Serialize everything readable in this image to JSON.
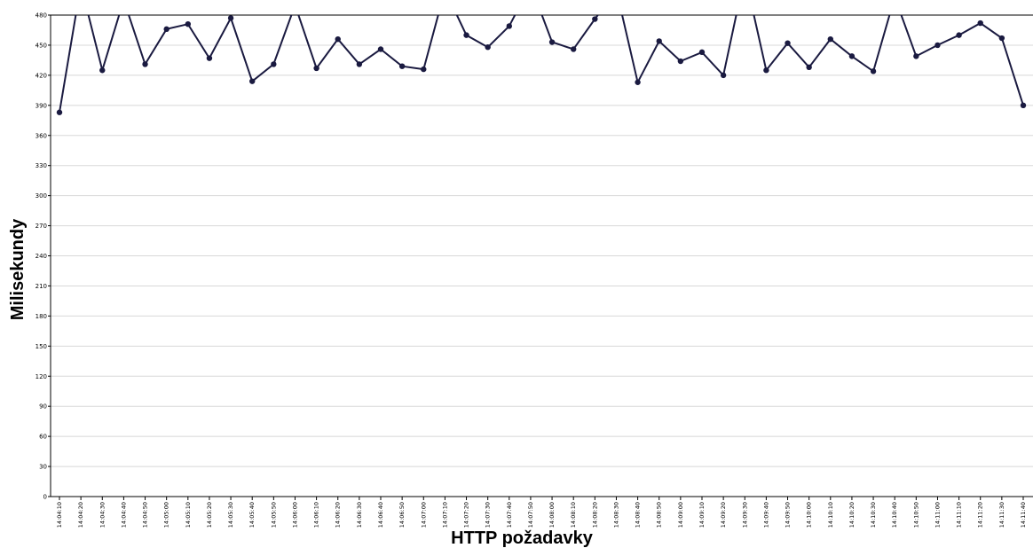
{
  "chart_data": {
    "type": "line",
    "title": "",
    "xlabel": "HTTP požadavky",
    "ylabel": "Milisekundy",
    "ylim": [
      0,
      480
    ],
    "yticks": [
      0,
      30,
      60,
      90,
      120,
      150,
      180,
      210,
      240,
      270,
      300,
      330,
      360,
      390,
      420,
      450,
      480
    ],
    "grid": true,
    "x": [
      "14:04:10",
      "14:04:20",
      "14:04:30",
      "14:04:40",
      "14:04:50",
      "14:05:00",
      "14:05:10",
      "14:05:20",
      "14:05:30",
      "14:05:40",
      "14:05:50",
      "14:06:00",
      "14:06:10",
      "14:06:20",
      "14:06:30",
      "14:06:40",
      "14:06:50",
      "14:07:00",
      "14:07:10",
      "14:07:20",
      "14:07:30",
      "14:07:40",
      "14:07:50",
      "14:08:00",
      "14:08:10",
      "14:08:20",
      "14:08:30",
      "14:08:40",
      "14:08:50",
      "14:09:00",
      "14:09:10",
      "14:09:20",
      "14:09:30",
      "14:09:40",
      "14:09:50",
      "14:10:00",
      "14:10:10",
      "14:10:20",
      "14:10:30",
      "14:10:40",
      "14:10:50",
      "14:11:00",
      "14:11:10",
      "14:11:20",
      "14:11:30",
      "14:11:40"
    ],
    "series": [
      {
        "values": [
          383,
          510,
          425,
          495,
          431,
          466,
          471,
          437,
          477,
          414,
          431,
          490,
          427,
          456,
          431,
          446,
          429,
          426,
          505,
          460,
          448,
          469,
          510,
          453,
          446,
          476,
          505,
          413,
          454,
          434,
          443,
          420,
          520,
          425,
          452,
          428,
          456,
          439,
          424,
          498,
          439,
          450,
          460,
          472,
          457,
          390
        ],
        "color": "#1a1a40"
      }
    ]
  }
}
